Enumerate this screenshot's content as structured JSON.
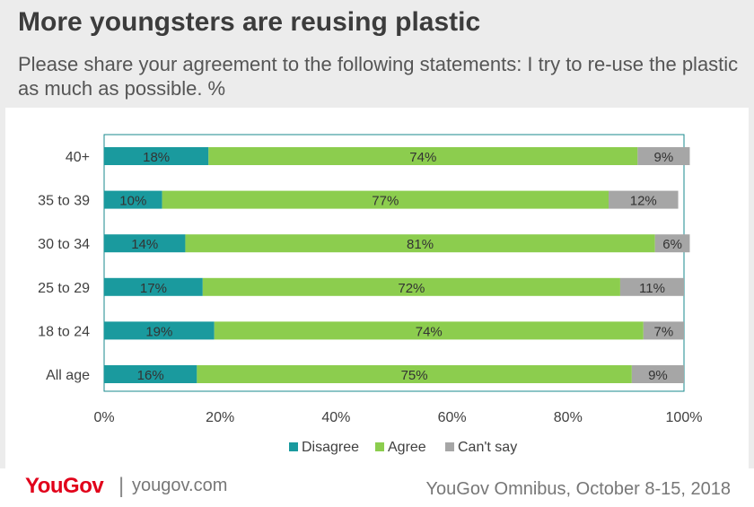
{
  "header": {
    "title": "More youngsters are reusing plastic",
    "subtitle": "Please share your agreement to the following statements: I try to re-use the plastic as much as possible. %"
  },
  "footer": {
    "logo": "YouGov",
    "separator": "|",
    "site": "yougov.com",
    "source": "YouGov Omnibus, October 8-15, 2018"
  },
  "chart_data": {
    "type": "bar",
    "orientation": "horizontal",
    "stacked": true,
    "categories": [
      "40+",
      "35 to 39",
      "30 to 34",
      "25 to 29",
      "18 to 24",
      "All age"
    ],
    "series": [
      {
        "name": "Disagree",
        "values": [
          18,
          10,
          14,
          17,
          19,
          16
        ],
        "labels": [
          "18%",
          "10%",
          "14%",
          "17%",
          "19%",
          "16%"
        ],
        "color": "#1a9a9e"
      },
      {
        "name": "Agree",
        "values": [
          74,
          77,
          81,
          72,
          74,
          75
        ],
        "labels": [
          "74%",
          "77%",
          "81%",
          "72%",
          "74%",
          "75%"
        ],
        "color": "#8ccd4e"
      },
      {
        "name": "Can't say",
        "values": [
          9,
          12,
          6,
          11,
          7,
          9
        ],
        "labels": [
          "9%",
          "12%",
          "6%",
          "11%",
          "7%",
          "9%"
        ],
        "color": "#a6a6a6"
      }
    ],
    "xlim": [
      0,
      100
    ],
    "xticks": [
      "0%",
      "20%",
      "40%",
      "60%",
      "80%",
      "100%"
    ],
    "xlabel": "",
    "ylabel": "",
    "grid": false,
    "legend": "bottom"
  }
}
